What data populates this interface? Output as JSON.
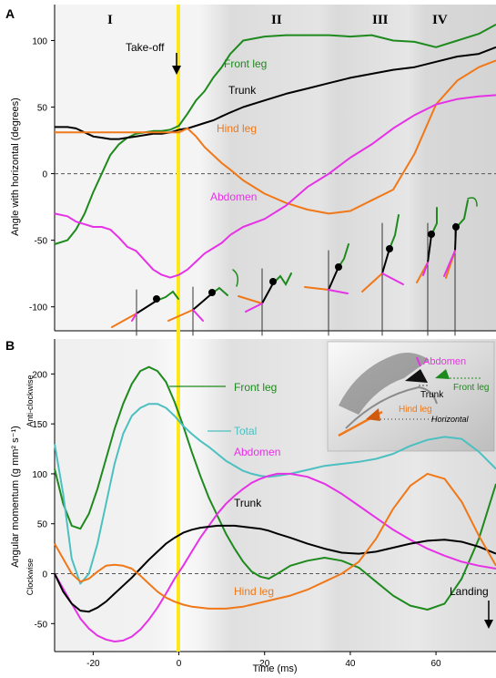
{
  "chart_data": [
    {
      "panel": "A",
      "type": "line",
      "ylabel": "Angle with horizontal (degrees)",
      "xlim": [
        -29,
        74
      ],
      "ylim": [
        -118,
        127
      ],
      "yticks": [
        -100,
        -50,
        0,
        50,
        100
      ],
      "zero_line": "dashed",
      "phases": [
        "I",
        "II",
        "III",
        "IV"
      ],
      "annotations": {
        "takeoff": "Take-off",
        "takeoff_x": 0
      },
      "series": [
        {
          "name": "Front leg",
          "color": "#1e8a1e",
          "x": [
            -29,
            -26,
            -24,
            -22,
            -20,
            -18,
            -16,
            -14,
            -12,
            -10,
            -8,
            -6,
            -4,
            -2,
            0,
            2,
            4,
            6,
            8,
            10,
            12,
            15,
            20,
            25,
            30,
            35,
            40,
            45,
            50,
            55,
            60,
            65,
            70,
            74
          ],
          "y": [
            -53,
            -50,
            -42,
            -30,
            -14,
            0,
            14,
            22,
            27,
            30,
            31,
            32,
            32,
            33,
            36,
            45,
            55,
            62,
            72,
            80,
            90,
            100,
            103,
            104,
            104,
            104,
            103,
            104,
            100,
            99,
            95,
            100,
            105,
            112
          ]
        },
        {
          "name": "Trunk",
          "color": "#000000",
          "x": [
            -29,
            -26,
            -24,
            -22,
            -20,
            -18,
            -16,
            -14,
            -12,
            -10,
            -8,
            -6,
            -4,
            -2,
            0,
            2,
            4,
            6,
            8,
            10,
            12,
            15,
            20,
            25,
            30,
            35,
            40,
            45,
            50,
            55,
            60,
            65,
            70,
            74
          ],
          "y": [
            35,
            35,
            34,
            31,
            28,
            27,
            26,
            26,
            27,
            28,
            29,
            30,
            30,
            31,
            33,
            34,
            36,
            38,
            40,
            43,
            46,
            50,
            55,
            60,
            64,
            68,
            72,
            75,
            78,
            80,
            84,
            88,
            90,
            95
          ]
        },
        {
          "name": "Hind leg",
          "color": "#f07818",
          "x": [
            -29,
            -26,
            -24,
            -22,
            -20,
            -18,
            -16,
            -14,
            -12,
            -10,
            -8,
            -6,
            -4,
            -2,
            0,
            2,
            4,
            6,
            8,
            10,
            12,
            15,
            20,
            25,
            30,
            35,
            40,
            45,
            50,
            55,
            60,
            65,
            70,
            74
          ],
          "y": [
            31,
            31,
            31,
            31,
            31,
            31,
            31,
            31,
            31,
            31,
            31,
            31,
            31,
            31,
            31,
            34,
            28,
            20,
            14,
            8,
            3,
            -5,
            -15,
            -22,
            -27,
            -30,
            -28,
            -20,
            -12,
            15,
            52,
            70,
            80,
            85
          ]
        },
        {
          "name": "Abdomen",
          "color": "#e632e6",
          "x": [
            -29,
            -26,
            -24,
            -22,
            -20,
            -18,
            -16,
            -14,
            -12,
            -10,
            -8,
            -6,
            -4,
            -2,
            0,
            2,
            4,
            6,
            8,
            10,
            12,
            15,
            20,
            25,
            30,
            35,
            40,
            45,
            50,
            55,
            60,
            65,
            70,
            74
          ],
          "y": [
            -30,
            -32,
            -36,
            -38,
            -40,
            -40,
            -42,
            -48,
            -55,
            -58,
            -65,
            -72,
            -76,
            -78,
            -76,
            -72,
            -66,
            -60,
            -56,
            -52,
            -46,
            -40,
            -34,
            -24,
            -10,
            0,
            12,
            22,
            34,
            44,
            52,
            56,
            58,
            59
          ]
        }
      ]
    },
    {
      "panel": "B",
      "type": "line",
      "xlabel": "Time (ms)",
      "ylabel": "Angular momentum (g mm² s⁻¹)",
      "ylabel_pos": "Anti-clockwise",
      "ylabel_neg": "Clockwise",
      "xlim": [
        -29,
        74
      ],
      "ylim": [
        -78,
        235
      ],
      "xticks": [
        -20,
        0,
        20,
        40,
        60
      ],
      "yticks": [
        -50,
        0,
        50,
        100,
        150,
        200
      ],
      "zero_line": "dashed",
      "annotations": {
        "landing": "Landing"
      },
      "inset_labels": {
        "abdomen": "Abdomen",
        "trunk": "Trunk",
        "front_leg": "Front leg",
        "hind_leg": "Hind leg",
        "horizontal": "Horizontal"
      },
      "series": [
        {
          "name": "Front leg",
          "color": "#1e8a1e",
          "x": [
            -29,
            -27,
            -25,
            -23,
            -21,
            -19,
            -17,
            -15,
            -13,
            -11,
            -9,
            -7,
            -5,
            -3,
            -1,
            1,
            3,
            5,
            7,
            9,
            11,
            13,
            15,
            17,
            19,
            21,
            23,
            26,
            30,
            34,
            38,
            42,
            46,
            50,
            54,
            58,
            62,
            66,
            70,
            74
          ],
          "y": [
            105,
            70,
            48,
            45,
            60,
            85,
            115,
            145,
            170,
            190,
            203,
            207,
            203,
            192,
            172,
            148,
            122,
            98,
            76,
            58,
            40,
            25,
            12,
            2,
            -3,
            -5,
            0,
            8,
            13,
            16,
            13,
            6,
            -8,
            -22,
            -32,
            -36,
            -30,
            -5,
            35,
            90
          ]
        },
        {
          "name": "Total",
          "color": "#4cc0c0",
          "x": [
            -29,
            -27,
            -25,
            -23,
            -21,
            -19,
            -17,
            -15,
            -13,
            -11,
            -9,
            -7,
            -5,
            -3,
            -1,
            1,
            3,
            5,
            7,
            9,
            11,
            13,
            15,
            17,
            19,
            21,
            23,
            26,
            30,
            34,
            38,
            42,
            46,
            50,
            54,
            58,
            62,
            66,
            70,
            74
          ],
          "y": [
            130,
            80,
            15,
            -10,
            0,
            30,
            70,
            110,
            140,
            158,
            166,
            170,
            170,
            166,
            158,
            148,
            140,
            133,
            127,
            120,
            113,
            108,
            103,
            100,
            98,
            97,
            98,
            100,
            104,
            108,
            110,
            112,
            115,
            120,
            128,
            134,
            137,
            135,
            122,
            105
          ]
        },
        {
          "name": "Abdomen",
          "color": "#e632e6",
          "x": [
            -29,
            -27,
            -25,
            -23,
            -21,
            -19,
            -17,
            -15,
            -13,
            -11,
            -9,
            -7,
            -5,
            -3,
            -1,
            1,
            3,
            5,
            7,
            9,
            11,
            13,
            15,
            17,
            19,
            21,
            23,
            26,
            30,
            34,
            38,
            42,
            46,
            50,
            54,
            58,
            62,
            66,
            70,
            74
          ],
          "y": [
            0,
            -15,
            -30,
            -45,
            -55,
            -62,
            -66,
            -68,
            -67,
            -63,
            -56,
            -46,
            -34,
            -20,
            -5,
            8,
            22,
            36,
            48,
            60,
            70,
            78,
            85,
            91,
            95,
            98,
            100,
            100,
            97,
            90,
            80,
            68,
            56,
            44,
            34,
            25,
            18,
            12,
            8,
            5
          ]
        },
        {
          "name": "Trunk",
          "color": "#000000",
          "x": [
            -29,
            -27,
            -25,
            -23,
            -21,
            -19,
            -17,
            -15,
            -13,
            -11,
            -9,
            -7,
            -5,
            -3,
            -1,
            1,
            3,
            5,
            7,
            9,
            11,
            13,
            15,
            17,
            19,
            21,
            23,
            26,
            30,
            34,
            38,
            42,
            46,
            50,
            54,
            58,
            62,
            66,
            70,
            74
          ],
          "y": [
            0,
            -18,
            -30,
            -37,
            -38,
            -34,
            -28,
            -20,
            -12,
            -4,
            5,
            14,
            22,
            30,
            36,
            41,
            44,
            46,
            47,
            48,
            48,
            48,
            47,
            46,
            45,
            43,
            40,
            36,
            30,
            25,
            21,
            20,
            22,
            26,
            30,
            33,
            34,
            32,
            27,
            20
          ]
        },
        {
          "name": "Hind leg",
          "color": "#f07818",
          "x": [
            -29,
            -27,
            -25,
            -23,
            -21,
            -19,
            -17,
            -15,
            -13,
            -11,
            -9,
            -7,
            -5,
            -3,
            -1,
            1,
            3,
            5,
            7,
            9,
            11,
            13,
            15,
            17,
            19,
            21,
            23,
            26,
            30,
            34,
            38,
            42,
            46,
            50,
            54,
            58,
            62,
            66,
            70,
            74
          ],
          "y": [
            30,
            15,
            0,
            -8,
            -5,
            2,
            8,
            9,
            8,
            5,
            -2,
            -10,
            -18,
            -24,
            -28,
            -31,
            -33,
            -34,
            -35,
            -35,
            -35,
            -34,
            -33,
            -31,
            -29,
            -27,
            -25,
            -22,
            -16,
            -8,
            0,
            12,
            35,
            65,
            88,
            100,
            95,
            72,
            38,
            8
          ]
        }
      ]
    }
  ],
  "labels": {
    "panel_a": "A",
    "panel_b": "B",
    "phase_1": "I",
    "phase_2": "II",
    "phase_3": "III",
    "phase_4": "IV",
    "takeoff": "Take-off",
    "landing": "Landing",
    "a_front": "Front leg",
    "a_trunk": "Trunk",
    "a_hind": "Hind leg",
    "a_abdomen": "Abdomen",
    "b_front": "Front leg",
    "b_total": "Total",
    "b_abdomen": "Abdomen",
    "b_trunk": "Trunk",
    "b_hind": "Hind leg",
    "ylabel_a": "Angle with horizontal (degrees)",
    "ylabel_b": "Angular momentum (g mm² s⁻¹)",
    "anticlockwise": "Anti-clockwise",
    "clockwise": "Clockwise",
    "xlabel": "Time (ms)",
    "inset_abdomen": "Abdomen",
    "inset_trunk": "Trunk",
    "inset_front": "Front leg",
    "inset_hind": "Hind leg",
    "inset_horizontal": "Horizontal"
  },
  "colors": {
    "front_leg": "#1e8a1e",
    "trunk": "#000000",
    "hind_leg": "#f07818",
    "abdomen": "#e632e6",
    "total": "#4cc0c0",
    "takeoff_line": "#ffe81a"
  }
}
